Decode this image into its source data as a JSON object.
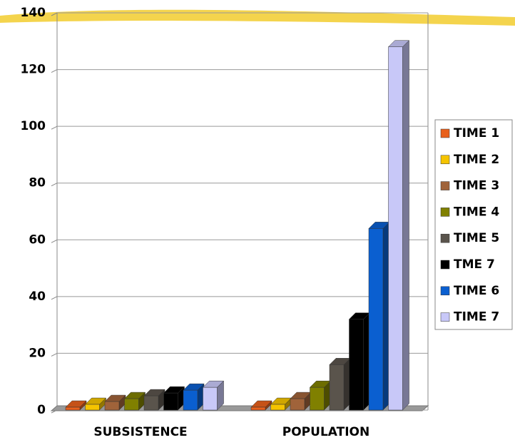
{
  "chart_data": {
    "type": "bar3d",
    "categories": [
      "SUBSISTENCE",
      "POPULATION"
    ],
    "series": [
      {
        "name": "TIME 1",
        "color": "#e8601c",
        "values": [
          1,
          1
        ]
      },
      {
        "name": "TIME 2",
        "color": "#f5c400",
        "values": [
          2,
          2
        ]
      },
      {
        "name": "TIME 3",
        "color": "#a0633a",
        "values": [
          3,
          4
        ]
      },
      {
        "name": "TIME 4",
        "color": "#808000",
        "values": [
          4,
          8
        ]
      },
      {
        "name": "TIME 5",
        "color": "#5a544c",
        "values": [
          5,
          16
        ]
      },
      {
        "name": "TME 7",
        "color": "#000000",
        "values": [
          6,
          32
        ]
      },
      {
        "name": "TIME 6",
        "color": "#0a5fd0",
        "values": [
          7,
          64
        ]
      },
      {
        "name": "TIME 7",
        "color": "#c8c8f8",
        "values": [
          8,
          128
        ]
      }
    ],
    "ylim": [
      0,
      140
    ],
    "yticks": [
      0,
      20,
      40,
      60,
      80,
      100,
      120,
      140
    ],
    "grid": true,
    "legend": "right"
  }
}
